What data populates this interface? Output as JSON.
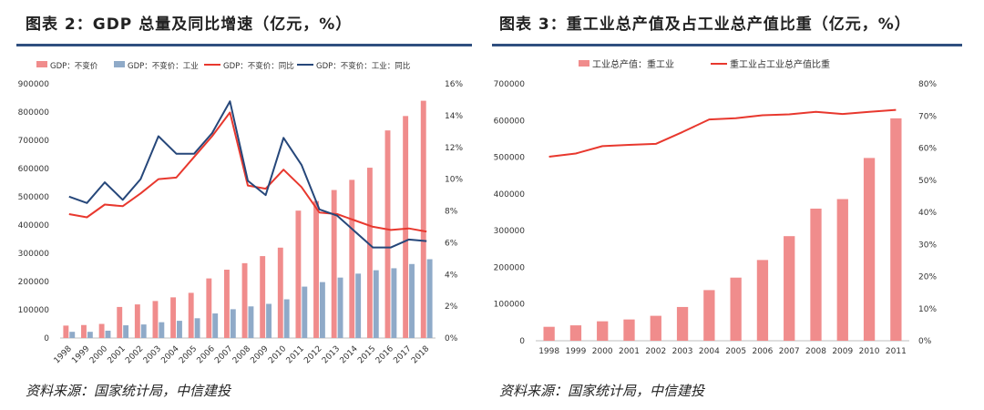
{
  "charts": [
    {
      "title": "图表 2：GDP 总量及同比增速（亿元，%）",
      "source": "资料来源：国家统计局，中信建投",
      "chart_data": {
        "type": "bar",
        "categories": [
          "1998",
          "1999",
          "2000",
          "2001",
          "2002",
          "2003",
          "2004",
          "2005",
          "2006",
          "2007",
          "2008",
          "2009",
          "2010",
          "2011",
          "2012",
          "2013",
          "2014",
          "2015",
          "2016",
          "2017",
          "2018"
        ],
        "series": [
          {
            "name": "GDP：不变价",
            "kind": "bar",
            "axis": "left",
            "color": "#f08c8c",
            "values": [
              44000,
              46000,
              50000,
              110000,
              119000,
              131000,
              144000,
              160000,
              211000,
              242000,
              265000,
              290000,
              320000,
              451000,
              485000,
              524000,
              560000,
              603000,
              735000,
              786000,
              840000
            ]
          },
          {
            "name": "GDP：不变价：工业",
            "kind": "bar",
            "axis": "left",
            "color": "#8faac8",
            "values": [
              22000,
              22000,
              26000,
              45000,
              48000,
              56000,
              61000,
              70000,
              87000,
              102000,
              112000,
              121000,
              137000,
              182000,
              198000,
              214000,
              228000,
              240000,
              247000,
              262000,
              279000
            ]
          },
          {
            "name": "GDP：不变价：同比",
            "kind": "line",
            "axis": "right",
            "color": "#e8382e",
            "values": [
              7.8,
              7.6,
              8.4,
              8.3,
              9.1,
              10.0,
              10.1,
              11.4,
              12.7,
              14.2,
              9.6,
              9.4,
              10.6,
              9.5,
              7.9,
              7.8,
              7.4,
              7.0,
              6.8,
              6.9,
              6.7
            ]
          },
          {
            "name": "GDP：不变价：工业：同比",
            "kind": "line",
            "axis": "right",
            "color": "#26477a",
            "values": [
              8.9,
              8.5,
              9.8,
              8.7,
              10.0,
              12.7,
              11.6,
              11.6,
              12.9,
              14.9,
              9.9,
              9.0,
              12.6,
              10.9,
              8.1,
              7.7,
              6.7,
              5.7,
              5.7,
              6.2,
              6.1
            ]
          }
        ],
        "ylim": [
          0,
          900000
        ],
        "yticks": [
          "0",
          "100000",
          "200000",
          "300000",
          "400000",
          "500000",
          "600000",
          "700000",
          "800000",
          "900000"
        ],
        "y2lim": [
          0,
          16
        ],
        "y2ticks": [
          "0%",
          "2%",
          "4%",
          "6%",
          "8%",
          "10%",
          "12%",
          "14%",
          "16%"
        ],
        "legend": "top",
        "grid": false
      }
    },
    {
      "title": "图表 3：重工业总产值及占工业总产值比重（亿元，%）",
      "source": "资料来源：国家统计局，中信建投",
      "chart_data": {
        "type": "bar",
        "categories": [
          "1998",
          "1999",
          "2000",
          "2001",
          "2002",
          "2003",
          "2004",
          "2005",
          "2006",
          "2007",
          "2008",
          "2009",
          "2010",
          "2011"
        ],
        "series": [
          {
            "name": "工业总产值：重工业",
            "kind": "bar",
            "axis": "left",
            "color": "#f08c8c",
            "values": [
              38000,
              42000,
              53000,
              58000,
              68000,
              92000,
              138000,
              172000,
              220000,
              285000,
              360000,
              386000,
              498000,
              606000
            ]
          },
          {
            "name": "重工业占工业总产值比重",
            "kind": "line",
            "axis": "right",
            "color": "#e8382e",
            "values": [
              57.3,
              58.3,
              60.6,
              61.0,
              61.3,
              65.0,
              68.9,
              69.3,
              70.2,
              70.5,
              71.3,
              70.6,
              71.3,
              71.9
            ]
          }
        ],
        "ylim": [
          0,
          700000
        ],
        "yticks": [
          "0",
          "100000",
          "200000",
          "300000",
          "400000",
          "500000",
          "600000",
          "700000"
        ],
        "y2lim": [
          0,
          80
        ],
        "y2ticks": [
          "0%",
          "10%",
          "20%",
          "30%",
          "40%",
          "50%",
          "60%",
          "70%",
          "80%"
        ],
        "legend": "top",
        "grid": false
      }
    }
  ]
}
